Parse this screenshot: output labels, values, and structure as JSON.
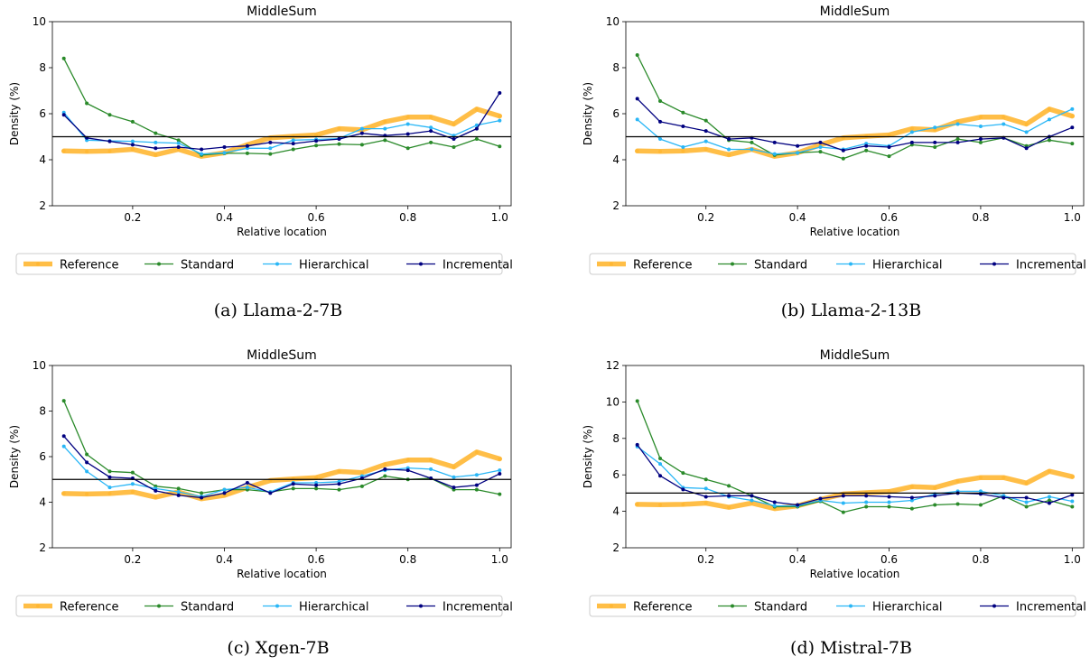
{
  "chart_data": [
    {
      "type": "line",
      "title": "MiddleSum",
      "xlabel": "Relative location",
      "ylabel": "Density (%)",
      "caption": "(a) Llama-2-7B",
      "xlim": [
        0.025,
        1.025
      ],
      "ylim": [
        2,
        10
      ],
      "xticks": [
        0.2,
        0.4,
        0.6,
        0.8,
        1.0
      ],
      "xtick_labels": [
        "0.2",
        "0.4",
        "0.6",
        "0.8",
        "1.0"
      ],
      "yticks": [
        2,
        4,
        6,
        8,
        10
      ],
      "ytick_labels": [
        "2",
        "4",
        "6",
        "8",
        "10"
      ],
      "hline": 5,
      "x": [
        0.05,
        0.1,
        0.15,
        0.2,
        0.25,
        0.3,
        0.35,
        0.4,
        0.45,
        0.5,
        0.55,
        0.6,
        0.65,
        0.7,
        0.75,
        0.8,
        0.85,
        0.9,
        0.95,
        1.0
      ],
      "series": [
        {
          "name": "Reference",
          "values": [
            4.38,
            4.36,
            4.38,
            4.45,
            4.22,
            4.45,
            4.15,
            4.3,
            4.65,
            4.95,
            5.02,
            5.08,
            5.35,
            5.3,
            5.65,
            5.85,
            5.85,
            5.55,
            6.2,
            5.9
          ]
        },
        {
          "name": "Standard",
          "values": [
            8.4,
            6.45,
            5.95,
            5.65,
            5.15,
            4.85,
            4.2,
            4.28,
            4.28,
            4.25,
            4.45,
            4.62,
            4.68,
            4.65,
            4.85,
            4.5,
            4.75,
            4.55,
            4.9,
            4.58
          ]
        },
        {
          "name": "Hierarchical",
          "values": [
            6.05,
            4.85,
            4.82,
            4.8,
            4.75,
            4.72,
            4.25,
            4.3,
            4.5,
            4.5,
            4.85,
            4.88,
            4.92,
            5.35,
            5.35,
            5.55,
            5.4,
            5.05,
            5.5,
            5.7
          ]
        },
        {
          "name": "Incremental",
          "values": [
            5.95,
            4.95,
            4.8,
            4.65,
            4.5,
            4.55,
            4.45,
            4.55,
            4.6,
            4.75,
            4.7,
            4.82,
            4.9,
            5.15,
            5.05,
            5.12,
            5.25,
            4.9,
            5.35,
            6.9
          ]
        }
      ]
    },
    {
      "type": "line",
      "title": "MiddleSum",
      "xlabel": "Relative location",
      "ylabel": "Density (%)",
      "caption": "(b) Llama-2-13B",
      "xlim": [
        0.025,
        1.025
      ],
      "ylim": [
        2,
        10
      ],
      "xticks": [
        0.2,
        0.4,
        0.6,
        0.8,
        1.0
      ],
      "xtick_labels": [
        "0.2",
        "0.4",
        "0.6",
        "0.8",
        "1.0"
      ],
      "yticks": [
        2,
        4,
        6,
        8,
        10
      ],
      "ytick_labels": [
        "2",
        "4",
        "6",
        "8",
        "10"
      ],
      "hline": 5,
      "x": [
        0.05,
        0.1,
        0.15,
        0.2,
        0.25,
        0.3,
        0.35,
        0.4,
        0.45,
        0.5,
        0.55,
        0.6,
        0.65,
        0.7,
        0.75,
        0.8,
        0.85,
        0.9,
        0.95,
        1.0
      ],
      "series": [
        {
          "name": "Reference",
          "values": [
            4.38,
            4.36,
            4.38,
            4.45,
            4.22,
            4.45,
            4.15,
            4.3,
            4.65,
            4.95,
            5.02,
            5.08,
            5.35,
            5.3,
            5.65,
            5.85,
            5.85,
            5.55,
            6.2,
            5.9
          ]
        },
        {
          "name": "Standard",
          "values": [
            8.55,
            6.55,
            6.05,
            5.7,
            4.85,
            4.75,
            4.2,
            4.3,
            4.35,
            4.05,
            4.4,
            4.15,
            4.65,
            4.55,
            4.9,
            4.75,
            4.95,
            4.6,
            4.85,
            4.7
          ]
        },
        {
          "name": "Hierarchical",
          "values": [
            5.75,
            4.9,
            4.55,
            4.8,
            4.45,
            4.45,
            4.25,
            4.3,
            4.55,
            4.45,
            4.7,
            4.6,
            5.2,
            5.4,
            5.55,
            5.45,
            5.55,
            5.2,
            5.75,
            6.2
          ]
        },
        {
          "name": "Incremental",
          "values": [
            6.65,
            5.65,
            5.45,
            5.25,
            4.9,
            4.95,
            4.75,
            4.6,
            4.75,
            4.4,
            4.6,
            4.55,
            4.75,
            4.75,
            4.75,
            4.9,
            4.95,
            4.5,
            5.0,
            5.4
          ]
        }
      ]
    },
    {
      "type": "line",
      "title": "MiddleSum",
      "xlabel": "Relative location",
      "ylabel": "Density (%)",
      "caption": "(c) Xgen-7B",
      "xlim": [
        0.025,
        1.025
      ],
      "ylim": [
        2,
        10
      ],
      "xticks": [
        0.2,
        0.4,
        0.6,
        0.8,
        1.0
      ],
      "xtick_labels": [
        "0.2",
        "0.4",
        "0.6",
        "0.8",
        "1.0"
      ],
      "yticks": [
        2,
        4,
        6,
        8,
        10
      ],
      "ytick_labels": [
        "2",
        "4",
        "6",
        "8",
        "10"
      ],
      "hline": 5,
      "x": [
        0.05,
        0.1,
        0.15,
        0.2,
        0.25,
        0.3,
        0.35,
        0.4,
        0.45,
        0.5,
        0.55,
        0.6,
        0.65,
        0.7,
        0.75,
        0.8,
        0.85,
        0.9,
        0.95,
        1.0
      ],
      "series": [
        {
          "name": "Reference",
          "values": [
            4.38,
            4.36,
            4.38,
            4.45,
            4.22,
            4.45,
            4.15,
            4.3,
            4.65,
            4.95,
            5.02,
            5.08,
            5.35,
            5.3,
            5.65,
            5.85,
            5.85,
            5.55,
            6.2,
            5.9
          ]
        },
        {
          "name": "Standard",
          "values": [
            8.45,
            6.1,
            5.35,
            5.3,
            4.7,
            4.6,
            4.4,
            4.55,
            4.55,
            4.45,
            4.6,
            4.6,
            4.55,
            4.7,
            5.15,
            5.0,
            5.05,
            4.55,
            4.55,
            4.35
          ]
        },
        {
          "name": "Hierarchical",
          "values": [
            6.45,
            5.35,
            4.65,
            4.8,
            4.6,
            4.45,
            4.25,
            4.55,
            4.65,
            4.45,
            4.85,
            4.85,
            4.9,
            5.15,
            5.4,
            5.5,
            5.45,
            5.1,
            5.2,
            5.4
          ]
        },
        {
          "name": "Incremental",
          "values": [
            6.9,
            5.75,
            5.1,
            5.05,
            4.5,
            4.3,
            4.2,
            4.4,
            4.85,
            4.4,
            4.8,
            4.75,
            4.8,
            5.05,
            5.45,
            5.4,
            5.05,
            4.65,
            4.75,
            5.25
          ]
        }
      ]
    },
    {
      "type": "line",
      "title": "MiddleSum",
      "xlabel": "Relative location",
      "ylabel": "Density (%)",
      "caption": "(d) Mistral-7B",
      "xlim": [
        0.025,
        1.025
      ],
      "ylim": [
        2,
        12
      ],
      "xticks": [
        0.2,
        0.4,
        0.6,
        0.8,
        1.0
      ],
      "xtick_labels": [
        "0.2",
        "0.4",
        "0.6",
        "0.8",
        "1.0"
      ],
      "yticks": [
        2,
        4,
        6,
        8,
        10,
        12
      ],
      "ytick_labels": [
        "2",
        "4",
        "6",
        "8",
        "10",
        "12"
      ],
      "hline": 5,
      "x": [
        0.05,
        0.1,
        0.15,
        0.2,
        0.25,
        0.3,
        0.35,
        0.4,
        0.45,
        0.5,
        0.55,
        0.6,
        0.65,
        0.7,
        0.75,
        0.8,
        0.85,
        0.9,
        0.95,
        1.0
      ],
      "series": [
        {
          "name": "Reference",
          "values": [
            4.38,
            4.36,
            4.38,
            4.45,
            4.22,
            4.45,
            4.15,
            4.3,
            4.65,
            4.95,
            5.02,
            5.08,
            5.35,
            5.3,
            5.65,
            5.85,
            5.85,
            5.55,
            6.2,
            5.9
          ]
        },
        {
          "name": "Standard",
          "values": [
            10.05,
            6.9,
            6.1,
            5.75,
            5.4,
            4.85,
            4.25,
            4.25,
            4.55,
            3.95,
            4.25,
            4.25,
            4.15,
            4.35,
            4.4,
            4.35,
            4.85,
            4.25,
            4.6,
            4.25
          ]
        },
        {
          "name": "Hierarchical",
          "values": [
            7.55,
            6.6,
            5.3,
            5.25,
            4.8,
            4.6,
            4.3,
            4.3,
            4.6,
            4.45,
            4.5,
            4.5,
            4.6,
            4.95,
            5.1,
            5.1,
            4.85,
            4.5,
            4.8,
            4.55
          ]
        },
        {
          "name": "Incremental",
          "values": [
            7.65,
            5.95,
            5.2,
            4.8,
            4.85,
            4.85,
            4.5,
            4.35,
            4.7,
            4.85,
            4.85,
            4.8,
            4.75,
            4.85,
            5.0,
            4.95,
            4.75,
            4.75,
            4.45,
            4.9
          ]
        }
      ]
    }
  ],
  "series_colors": {
    "Reference": "#ffb733",
    "Standard": "#2a8a2a",
    "Hierarchical": "#29b6f6",
    "Incremental": "#000080"
  }
}
